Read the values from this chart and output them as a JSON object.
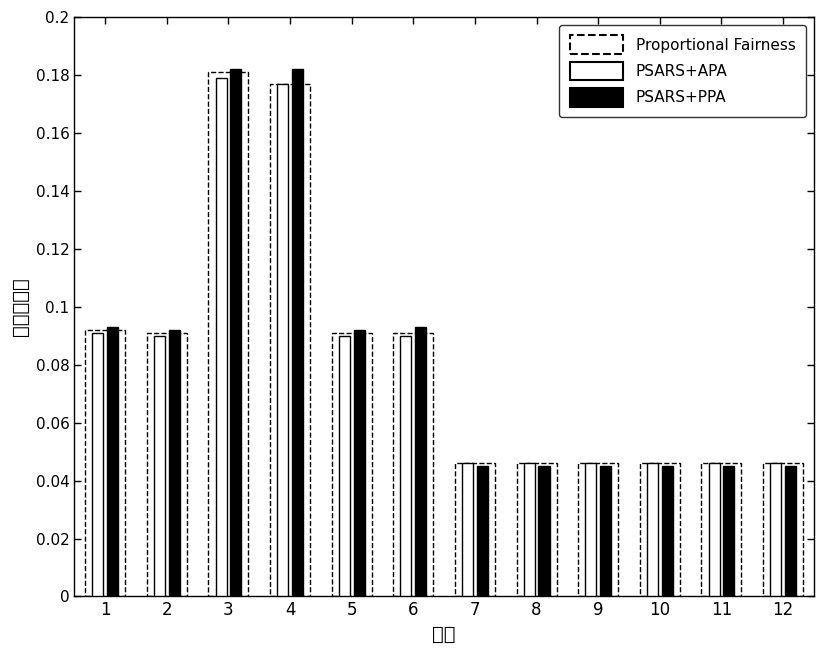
{
  "categories": [
    1,
    2,
    3,
    4,
    5,
    6,
    7,
    8,
    9,
    10,
    11,
    12
  ],
  "proportional_fairness": [
    0.092,
    0.091,
    0.181,
    0.177,
    0.091,
    0.091,
    0.046,
    0.046,
    0.046,
    0.046,
    0.046,
    0.046
  ],
  "psars_apa": [
    0.091,
    0.09,
    0.179,
    0.177,
    0.09,
    0.09,
    0.046,
    0.046,
    0.046,
    0.046,
    0.046,
    0.046
  ],
  "psars_ppa": [
    0.093,
    0.092,
    0.182,
    0.182,
    0.092,
    0.093,
    0.045,
    0.045,
    0.045,
    0.045,
    0.045,
    0.045
  ],
  "xlabel": "用户",
  "ylabel": "归一化容量",
  "ylim": [
    0,
    0.2
  ],
  "yticks": [
    0,
    0.02,
    0.04,
    0.06,
    0.08,
    0.1,
    0.12,
    0.14,
    0.16,
    0.18,
    0.2
  ],
  "ytick_labels": [
    "0",
    "0.02",
    "0.04",
    "0.06",
    "0.08",
    "0.1",
    "0.12",
    "0.14",
    "0.16",
    "0.18",
    "0.2"
  ],
  "legend_labels": [
    "Proportional Fairness",
    "PSARS+APA",
    "PSARS+PPA"
  ],
  "pf_bar_width": 0.65,
  "apa_bar_width": 0.18,
  "ppa_bar_width": 0.18,
  "background_color": "#ffffff",
  "pf_color": "#ffffff",
  "pf_edge_color": "#000000",
  "apa_color": "#ffffff",
  "apa_edge_color": "#000000",
  "ppa_color": "#000000",
  "ppa_edge_color": "#000000"
}
